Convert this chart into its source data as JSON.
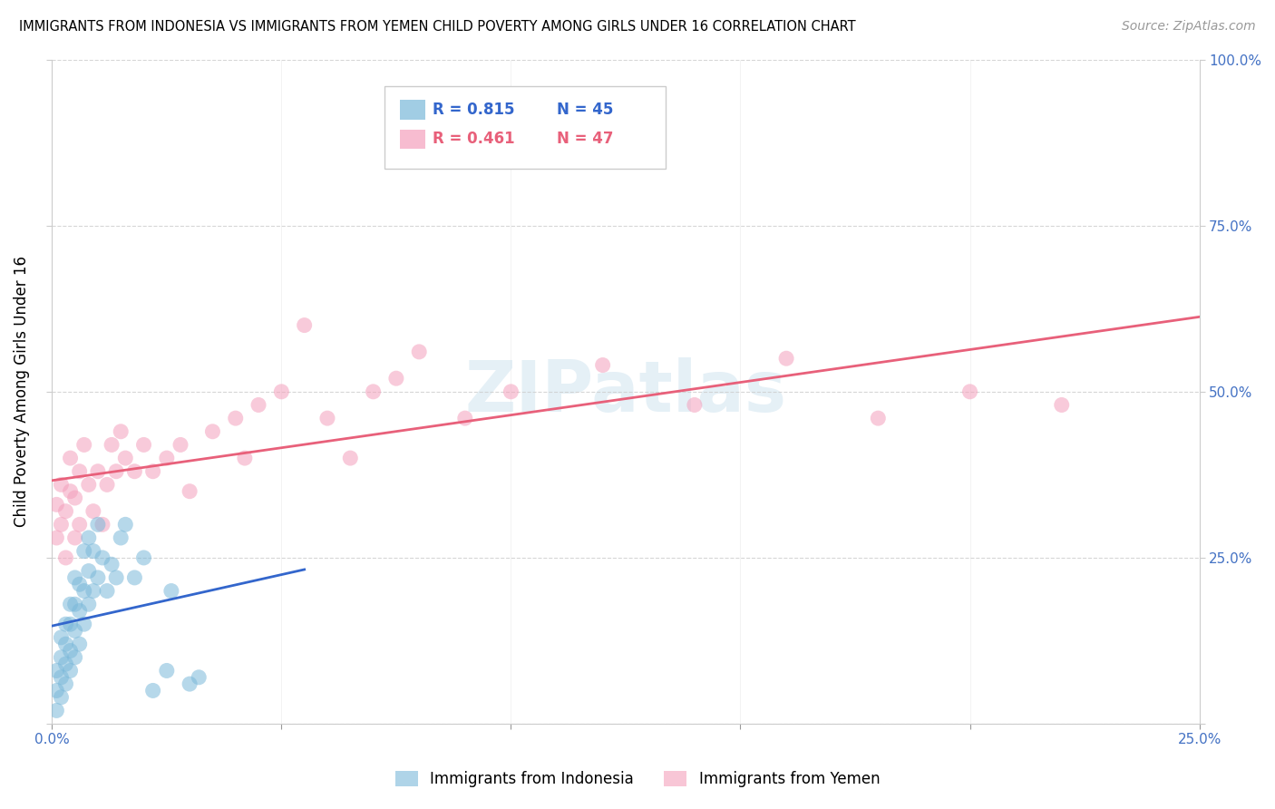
{
  "title": "IMMIGRANTS FROM INDONESIA VS IMMIGRANTS FROM YEMEN CHILD POVERTY AMONG GIRLS UNDER 16 CORRELATION CHART",
  "source": "Source: ZipAtlas.com",
  "ylabel": "Child Poverty Among Girls Under 16",
  "xlim": [
    0.0,
    0.25
  ],
  "ylim": [
    0.0,
    1.0
  ],
  "xticks": [
    0.0,
    0.05,
    0.1,
    0.15,
    0.2,
    0.25
  ],
  "xticklabels": [
    "0.0%",
    "",
    "",
    "",
    "",
    "25.0%"
  ],
  "yticks_left": [],
  "yticks_right": [
    0.0,
    0.25,
    0.5,
    0.75,
    1.0
  ],
  "yticklabels_right": [
    "",
    "25.0%",
    "50.0%",
    "75.0%",
    "100.0%"
  ],
  "indonesia_color": "#7ab8d9",
  "yemen_color": "#f4a0bc",
  "indonesia_label": "Immigrants from Indonesia",
  "yemen_label": "Immigrants from Yemen",
  "indonesia_R": 0.815,
  "indonesia_N": 45,
  "yemen_R": 0.461,
  "yemen_N": 47,
  "indonesia_line_color": "#3366cc",
  "yemen_line_color": "#e8607a",
  "legend_blue_color": "#3366cc",
  "legend_pink_color": "#e8607a",
  "watermark": "ZIPatlas",
  "background_color": "#ffffff",
  "indonesia_x": [
    0.001,
    0.001,
    0.001,
    0.002,
    0.002,
    0.002,
    0.002,
    0.003,
    0.003,
    0.003,
    0.003,
    0.004,
    0.004,
    0.004,
    0.004,
    0.005,
    0.005,
    0.005,
    0.005,
    0.006,
    0.006,
    0.006,
    0.007,
    0.007,
    0.007,
    0.008,
    0.008,
    0.008,
    0.009,
    0.009,
    0.01,
    0.01,
    0.011,
    0.012,
    0.013,
    0.014,
    0.015,
    0.016,
    0.018,
    0.02,
    0.022,
    0.025,
    0.026,
    0.03,
    0.032
  ],
  "indonesia_y": [
    0.02,
    0.05,
    0.08,
    0.04,
    0.07,
    0.1,
    0.13,
    0.06,
    0.09,
    0.12,
    0.15,
    0.08,
    0.11,
    0.15,
    0.18,
    0.1,
    0.14,
    0.18,
    0.22,
    0.12,
    0.17,
    0.21,
    0.15,
    0.2,
    0.26,
    0.18,
    0.23,
    0.28,
    0.2,
    0.26,
    0.22,
    0.3,
    0.25,
    0.2,
    0.24,
    0.22,
    0.28,
    0.3,
    0.22,
    0.25,
    0.05,
    0.08,
    0.2,
    0.06,
    0.07
  ],
  "yemen_x": [
    0.001,
    0.001,
    0.002,
    0.002,
    0.003,
    0.003,
    0.004,
    0.004,
    0.005,
    0.005,
    0.006,
    0.006,
    0.007,
    0.008,
    0.009,
    0.01,
    0.011,
    0.012,
    0.013,
    0.014,
    0.015,
    0.016,
    0.018,
    0.02,
    0.022,
    0.025,
    0.028,
    0.03,
    0.035,
    0.04,
    0.042,
    0.045,
    0.05,
    0.055,
    0.06,
    0.065,
    0.07,
    0.075,
    0.08,
    0.09,
    0.1,
    0.12,
    0.14,
    0.16,
    0.18,
    0.2,
    0.22
  ],
  "yemen_y": [
    0.28,
    0.33,
    0.3,
    0.36,
    0.25,
    0.32,
    0.35,
    0.4,
    0.28,
    0.34,
    0.3,
    0.38,
    0.42,
    0.36,
    0.32,
    0.38,
    0.3,
    0.36,
    0.42,
    0.38,
    0.44,
    0.4,
    0.38,
    0.42,
    0.38,
    0.4,
    0.42,
    0.35,
    0.44,
    0.46,
    0.4,
    0.48,
    0.5,
    0.6,
    0.46,
    0.4,
    0.5,
    0.52,
    0.56,
    0.46,
    0.5,
    0.54,
    0.48,
    0.55,
    0.46,
    0.5,
    0.48
  ]
}
